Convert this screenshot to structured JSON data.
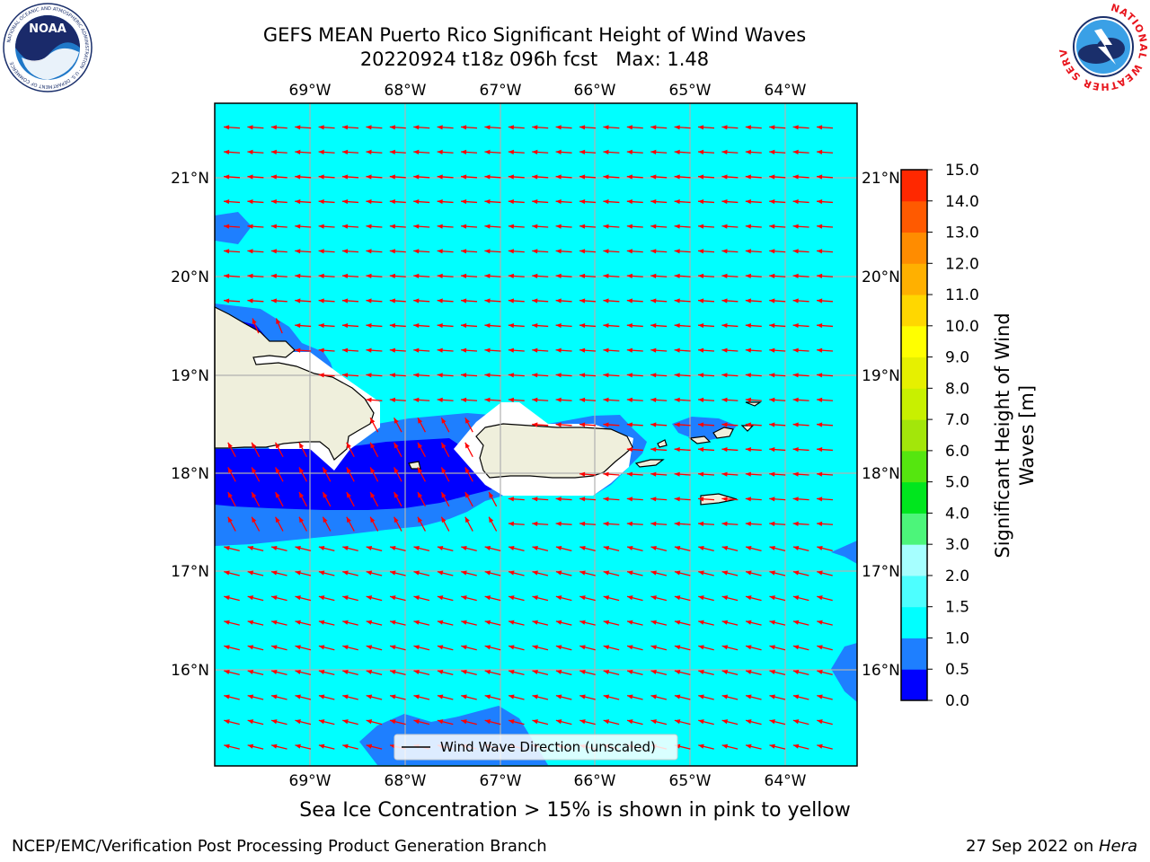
{
  "title": {
    "line1": "GEFS MEAN Puerto Rico Significant Height of Wind Waves",
    "line2": "20220924 t18z 096h fcst   Max: 1.48"
  },
  "logos": {
    "left": {
      "text": "NOAA",
      "ring_text": "NATIONAL OCEANIC AND ATMOSPHERIC ADMINISTRATION · U.S. DEPARTMENT OF COMMERCE",
      "icon": "noaa-logo-icon"
    },
    "right": {
      "ring_text": "NATIONAL WEATHER SERVICE",
      "icon": "nws-logo-icon"
    }
  },
  "map": {
    "lon_range": [
      -70,
      -63.25
    ],
    "lat_range": [
      15.05,
      21.75
    ],
    "lon_ticks": [
      "69°W",
      "68°W",
      "67°W",
      "66°W",
      "65°W",
      "64°W"
    ],
    "lat_ticks": [
      "16°N",
      "17°N",
      "18°N",
      "19°N",
      "20°N",
      "21°N"
    ],
    "gridlines": true,
    "ocean_color": "#00ffff",
    "land_color": "#efefdc",
    "arrow_color": "#ff0000",
    "dominant_direction": "westward (waves propagating toward the west / west-southwest)"
  },
  "legend": {
    "label": "Wind Wave Direction (unscaled)",
    "placement": "bottom-center"
  },
  "colorbar": {
    "label": "Significant Height of Wind Waves [m]",
    "label_line1": "Significant Height of Wind",
    "label_line2": "Waves [m]",
    "levels": [
      0.0,
      0.5,
      1.0,
      1.5,
      2.0,
      3.0,
      4.0,
      5.0,
      6.0,
      7.0,
      8.0,
      9.0,
      10.0,
      11.0,
      12.0,
      13.0,
      14.0,
      15.0
    ],
    "tick_labels": [
      "0.0",
      "0.5",
      "1.0",
      "1.5",
      "2.0",
      "3.0",
      "4.0",
      "5.0",
      "6.0",
      "7.0",
      "8.0",
      "9.0",
      "10.0",
      "11.0",
      "12.0",
      "13.0",
      "14.0",
      "15.0"
    ],
    "colors": [
      "#0000ff",
      "#1e7fff",
      "#00ffff",
      "#4dffff",
      "#a6ffff",
      "#4cf57a",
      "#00e61e",
      "#55e60f",
      "#a3e60a",
      "#c8f000",
      "#e6f000",
      "#ffff00",
      "#ffd700",
      "#ffb000",
      "#ff8c00",
      "#ff5a00",
      "#ff2800"
    ]
  },
  "ice_note": "Sea Ice Concentration > 15% is shown in pink to yellow",
  "footer": {
    "left": "NCEP/EMC/Verification Post Processing Product Generation Branch",
    "right_date": "27 Sep 2022 on ",
    "right_host": "Hera"
  }
}
